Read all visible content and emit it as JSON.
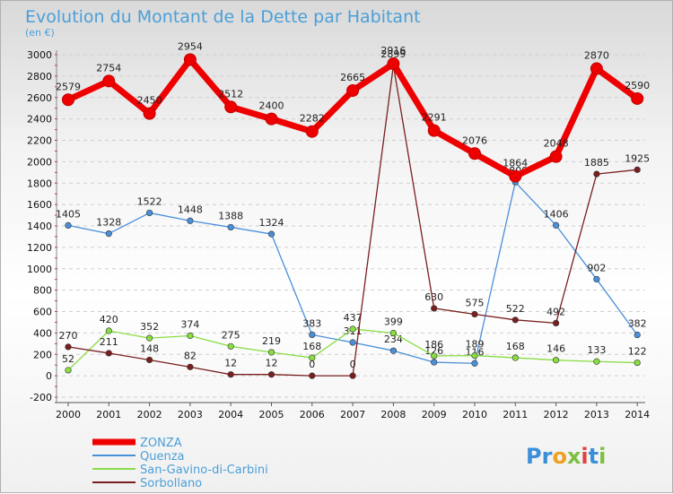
{
  "chart_data": {
    "type": "line",
    "title": "Evolution du Montant de la Dette par Habitant",
    "subtitle": "(en €)",
    "x": [
      "2000",
      "2001",
      "2002",
      "2003",
      "2004",
      "2005",
      "2006",
      "2007",
      "2008",
      "2009",
      "2010",
      "2011",
      "2012",
      "2013",
      "2014"
    ],
    "ylim": [
      -200,
      3000
    ],
    "yticks": [
      -200,
      0,
      200,
      400,
      600,
      800,
      1000,
      1200,
      1400,
      1600,
      1800,
      2000,
      2200,
      2400,
      2600,
      2800,
      3000
    ],
    "grid": "dashed horizontal",
    "legend_position": "bottom-left",
    "series": [
      {
        "name": "ZONZA",
        "color": "#ee0000",
        "values": [
          2579,
          2754,
          2450,
          2954,
          2512,
          2400,
          2282,
          2665,
          2916,
          2291,
          2076,
          1864,
          2048,
          2870,
          2590
        ]
      },
      {
        "name": "Quenza",
        "color": "#4a90d9",
        "values": [
          1405,
          1328,
          1522,
          1448,
          1388,
          1324,
          383,
          311,
          234,
          126,
          116,
          1809,
          1406,
          902,
          382
        ]
      },
      {
        "name": "San-Gavino-di-Carbini",
        "color": "#88dd44",
        "values": [
          52,
          420,
          352,
          374,
          275,
          219,
          168,
          437,
          399,
          186,
          189,
          168,
          146,
          133,
          122
        ]
      },
      {
        "name": "Sorbollano",
        "color": "#7a1f1f",
        "values": [
          270,
          211,
          148,
          82,
          12,
          12,
          0,
          0,
          2899,
          630,
          575,
          522,
          492,
          1885,
          1925
        ]
      }
    ]
  },
  "brand": {
    "text": "Proxiti",
    "letters": [
      "P",
      "r",
      "o",
      "x",
      "i",
      "t",
      "i"
    ],
    "letter_colors": [
      "#3a8fd8",
      "#3a8fd8",
      "#f0a020",
      "#7cc040",
      "#e04040",
      "#3a8fd8",
      "#7cc040"
    ]
  }
}
